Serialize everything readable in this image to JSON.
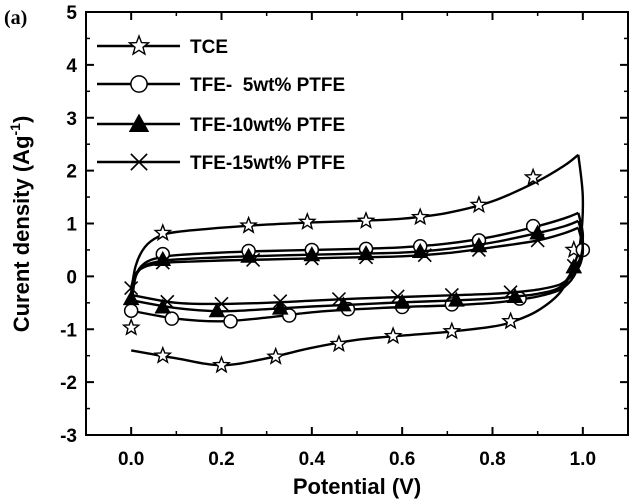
{
  "chart_data": {
    "type": "line",
    "panel_label": "(a)",
    "xlabel": "Potential (V)",
    "ylabel": "Curent density (Ag",
    "ylabel_sup": "-1",
    "ylabel_close": ")",
    "xlim": [
      -0.1,
      1.1
    ],
    "ylim": [
      -3,
      5
    ],
    "x_ticks": [
      "0.0",
      "0.2",
      "0.4",
      "0.6",
      "0.8",
      "1.0"
    ],
    "y_ticks": [
      "-3",
      "-2",
      "-1",
      "0",
      "1",
      "2",
      "3",
      "4",
      "5"
    ],
    "legend_position": "top-left",
    "series": [
      {
        "name": "TCE",
        "marker": "star",
        "upper": [
          [
            0.0,
            -0.3
          ],
          [
            0.01,
            0.2
          ],
          [
            0.03,
            0.55
          ],
          [
            0.06,
            0.75
          ],
          [
            0.1,
            0.84
          ],
          [
            0.2,
            0.92
          ],
          [
            0.3,
            0.98
          ],
          [
            0.4,
            1.02
          ],
          [
            0.5,
            1.05
          ],
          [
            0.6,
            1.09
          ],
          [
            0.7,
            1.2
          ],
          [
            0.8,
            1.42
          ],
          [
            0.9,
            1.8
          ],
          [
            0.96,
            2.1
          ],
          [
            0.99,
            2.3
          ]
        ],
        "lower": [
          [
            0.99,
            2.3
          ],
          [
            1.0,
            1.5
          ],
          [
            0.995,
            0.7
          ],
          [
            0.98,
            0.2
          ],
          [
            0.95,
            -0.3
          ],
          [
            0.9,
            -0.65
          ],
          [
            0.85,
            -0.84
          ],
          [
            0.8,
            -0.95
          ],
          [
            0.7,
            -1.05
          ],
          [
            0.6,
            -1.12
          ],
          [
            0.5,
            -1.2
          ],
          [
            0.4,
            -1.35
          ],
          [
            0.3,
            -1.55
          ],
          [
            0.2,
            -1.68
          ],
          [
            0.1,
            -1.55
          ],
          [
            0.0,
            -1.4
          ]
        ],
        "markers": [
          [
            0.07,
            0.82
          ],
          [
            0.26,
            0.96
          ],
          [
            0.39,
            1.03
          ],
          [
            0.52,
            1.05
          ],
          [
            0.64,
            1.12
          ],
          [
            0.77,
            1.35
          ],
          [
            0.89,
            1.87
          ],
          [
            0.98,
            0.5
          ],
          [
            0.84,
            -0.85
          ],
          [
            0.71,
            -1.04
          ],
          [
            0.58,
            -1.13
          ],
          [
            0.46,
            -1.28
          ],
          [
            0.32,
            -1.52
          ],
          [
            0.2,
            -1.68
          ],
          [
            0.07,
            -1.5
          ],
          [
            0.0,
            -0.97
          ]
        ]
      },
      {
        "name": "TFE-  5wt% PTFE",
        "marker": "circle",
        "upper": [
          [
            0.0,
            -0.6
          ],
          [
            0.01,
            0.0
          ],
          [
            0.03,
            0.25
          ],
          [
            0.06,
            0.35
          ],
          [
            0.1,
            0.4
          ],
          [
            0.2,
            0.45
          ],
          [
            0.3,
            0.48
          ],
          [
            0.4,
            0.5
          ],
          [
            0.5,
            0.52
          ],
          [
            0.6,
            0.55
          ],
          [
            0.7,
            0.62
          ],
          [
            0.8,
            0.75
          ],
          [
            0.9,
            0.95
          ],
          [
            0.96,
            1.1
          ],
          [
            0.99,
            1.2
          ]
        ],
        "lower": [
          [
            0.99,
            1.2
          ],
          [
            1.0,
            0.8
          ],
          [
            0.995,
            0.4
          ],
          [
            0.98,
            0.0
          ],
          [
            0.95,
            -0.25
          ],
          [
            0.9,
            -0.38
          ],
          [
            0.85,
            -0.45
          ],
          [
            0.8,
            -0.5
          ],
          [
            0.7,
            -0.55
          ],
          [
            0.6,
            -0.58
          ],
          [
            0.5,
            -0.62
          ],
          [
            0.4,
            -0.68
          ],
          [
            0.3,
            -0.78
          ],
          [
            0.2,
            -0.85
          ],
          [
            0.1,
            -0.8
          ],
          [
            0.0,
            -0.65
          ]
        ],
        "markers": [
          [
            0.07,
            0.42
          ],
          [
            0.26,
            0.48
          ],
          [
            0.4,
            0.5
          ],
          [
            0.52,
            0.52
          ],
          [
            0.64,
            0.57
          ],
          [
            0.77,
            0.68
          ],
          [
            0.89,
            0.95
          ],
          [
            1.0,
            0.5
          ],
          [
            0.86,
            -0.42
          ],
          [
            0.71,
            -0.53
          ],
          [
            0.6,
            -0.58
          ],
          [
            0.48,
            -0.62
          ],
          [
            0.35,
            -0.74
          ],
          [
            0.22,
            -0.85
          ],
          [
            0.09,
            -0.8
          ],
          [
            0.0,
            -0.65
          ]
        ]
      },
      {
        "name": "TFE-10wt% PTFE",
        "marker": "triangle",
        "upper": [
          [
            0.0,
            -0.45
          ],
          [
            0.01,
            0.0
          ],
          [
            0.03,
            0.2
          ],
          [
            0.06,
            0.28
          ],
          [
            0.1,
            0.32
          ],
          [
            0.2,
            0.36
          ],
          [
            0.3,
            0.39
          ],
          [
            0.4,
            0.41
          ],
          [
            0.5,
            0.43
          ],
          [
            0.6,
            0.45
          ],
          [
            0.7,
            0.52
          ],
          [
            0.8,
            0.64
          ],
          [
            0.9,
            0.82
          ],
          [
            0.96,
            0.95
          ],
          [
            0.99,
            1.05
          ]
        ],
        "lower": [
          [
            0.99,
            1.05
          ],
          [
            1.0,
            0.7
          ],
          [
            0.995,
            0.35
          ],
          [
            0.98,
            0.15
          ],
          [
            0.95,
            -0.2
          ],
          [
            0.9,
            -0.33
          ],
          [
            0.85,
            -0.38
          ],
          [
            0.8,
            -0.42
          ],
          [
            0.7,
            -0.46
          ],
          [
            0.6,
            -0.49
          ],
          [
            0.5,
            -0.53
          ],
          [
            0.4,
            -0.57
          ],
          [
            0.3,
            -0.62
          ],
          [
            0.2,
            -0.66
          ],
          [
            0.1,
            -0.6
          ],
          [
            0.0,
            -0.45
          ]
        ],
        "markers": [
          [
            0.07,
            0.32
          ],
          [
            0.26,
            0.38
          ],
          [
            0.4,
            0.41
          ],
          [
            0.52,
            0.43
          ],
          [
            0.64,
            0.47
          ],
          [
            0.77,
            0.58
          ],
          [
            0.9,
            0.82
          ],
          [
            0.98,
            0.18
          ],
          [
            0.85,
            -0.38
          ],
          [
            0.72,
            -0.45
          ],
          [
            0.6,
            -0.49
          ],
          [
            0.47,
            -0.54
          ],
          [
            0.33,
            -0.6
          ],
          [
            0.19,
            -0.65
          ],
          [
            0.07,
            -0.58
          ],
          [
            0.0,
            -0.42
          ]
        ]
      },
      {
        "name": "TFE-15wt% PTFE",
        "marker": "cross",
        "upper": [
          [
            0.0,
            -0.2
          ],
          [
            0.01,
            0.05
          ],
          [
            0.03,
            0.18
          ],
          [
            0.06,
            0.24
          ],
          [
            0.1,
            0.27
          ],
          [
            0.2,
            0.3
          ],
          [
            0.3,
            0.32
          ],
          [
            0.4,
            0.34
          ],
          [
            0.5,
            0.36
          ],
          [
            0.6,
            0.38
          ],
          [
            0.7,
            0.44
          ],
          [
            0.8,
            0.55
          ],
          [
            0.9,
            0.68
          ],
          [
            0.96,
            0.82
          ],
          [
            0.99,
            0.92
          ]
        ],
        "lower": [
          [
            0.99,
            0.92
          ],
          [
            1.0,
            0.55
          ],
          [
            0.995,
            0.25
          ],
          [
            0.98,
            0.05
          ],
          [
            0.95,
            -0.15
          ],
          [
            0.9,
            -0.25
          ],
          [
            0.85,
            -0.3
          ],
          [
            0.8,
            -0.33
          ],
          [
            0.7,
            -0.36
          ],
          [
            0.6,
            -0.39
          ],
          [
            0.5,
            -0.42
          ],
          [
            0.4,
            -0.46
          ],
          [
            0.3,
            -0.5
          ],
          [
            0.2,
            -0.52
          ],
          [
            0.1,
            -0.5
          ],
          [
            0.0,
            -0.35
          ]
        ],
        "markers": [
          [
            0.07,
            0.26
          ],
          [
            0.27,
            0.31
          ],
          [
            0.4,
            0.34
          ],
          [
            0.52,
            0.36
          ],
          [
            0.65,
            0.4
          ],
          [
            0.77,
            0.5
          ],
          [
            0.9,
            0.68
          ],
          [
            0.98,
            0.2
          ],
          [
            0.84,
            -0.3
          ],
          [
            0.71,
            -0.35
          ],
          [
            0.59,
            -0.38
          ],
          [
            0.46,
            -0.43
          ],
          [
            0.33,
            -0.47
          ],
          [
            0.2,
            -0.52
          ],
          [
            0.08,
            -0.48
          ],
          [
            0.0,
            -0.22
          ]
        ]
      }
    ]
  }
}
